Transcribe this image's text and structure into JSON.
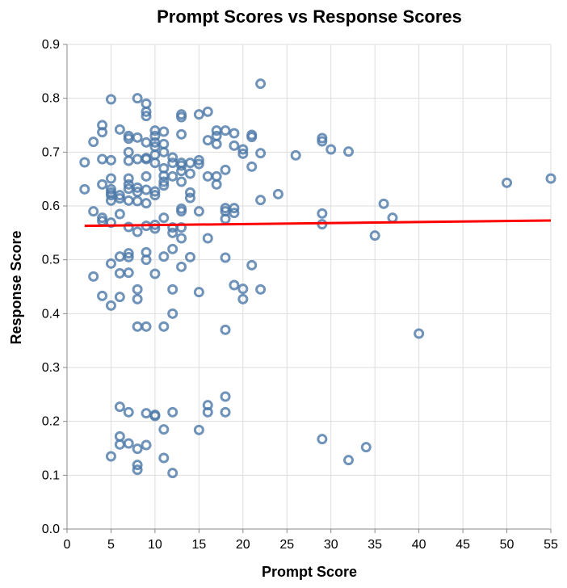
{
  "chart_data": {
    "type": "scatter",
    "title": "Prompt Scores vs Response Scores",
    "xlabel": "Prompt Score",
    "ylabel": "Response Score",
    "xlim": [
      0,
      55
    ],
    "ylim": [
      0,
      0.9
    ],
    "x_ticks": [
      0,
      5,
      10,
      15,
      20,
      25,
      30,
      35,
      40,
      45,
      50,
      55
    ],
    "y_ticks": [
      "0.0",
      "0.1",
      "0.2",
      "0.3",
      "0.4",
      "0.5",
      "0.6",
      "0.7",
      "0.8",
      "0.9"
    ],
    "grid": true,
    "point_color": "#4c78a8",
    "trend_color": "#ff0000",
    "trend_line": {
      "x": [
        2,
        55
      ],
      "y": [
        0.563,
        0.573
      ]
    },
    "points": [
      [
        2,
        0.681
      ],
      [
        2,
        0.631
      ],
      [
        3,
        0.719
      ],
      [
        3,
        0.59
      ],
      [
        3,
        0.469
      ],
      [
        4,
        0.75
      ],
      [
        4,
        0.737
      ],
      [
        4,
        0.687
      ],
      [
        4,
        0.64
      ],
      [
        4,
        0.578
      ],
      [
        4,
        0.572
      ],
      [
        4,
        0.433
      ],
      [
        5,
        0.798
      ],
      [
        5,
        0.685
      ],
      [
        5,
        0.651
      ],
      [
        5,
        0.631
      ],
      [
        5,
        0.625
      ],
      [
        5,
        0.62
      ],
      [
        5,
        0.61
      ],
      [
        5,
        0.569
      ],
      [
        5,
        0.493
      ],
      [
        5,
        0.415
      ],
      [
        5,
        0.135
      ],
      [
        6,
        0.742
      ],
      [
        6,
        0.62
      ],
      [
        6,
        0.614
      ],
      [
        6,
        0.585
      ],
      [
        6,
        0.506
      ],
      [
        6,
        0.475
      ],
      [
        6,
        0.431
      ],
      [
        6,
        0.227
      ],
      [
        6,
        0.172
      ],
      [
        6,
        0.157
      ],
      [
        7,
        0.73
      ],
      [
        7,
        0.725
      ],
      [
        7,
        0.7
      ],
      [
        7,
        0.684
      ],
      [
        7,
        0.651
      ],
      [
        7,
        0.64
      ],
      [
        7,
        0.632
      ],
      [
        7,
        0.61
      ],
      [
        7,
        0.561
      ],
      [
        7,
        0.512
      ],
      [
        7,
        0.505
      ],
      [
        7,
        0.476
      ],
      [
        7,
        0.217
      ],
      [
        7,
        0.159
      ],
      [
        8,
        0.8
      ],
      [
        8,
        0.727
      ],
      [
        8,
        0.687
      ],
      [
        8,
        0.634
      ],
      [
        8,
        0.626
      ],
      [
        8,
        0.609
      ],
      [
        8,
        0.552
      ],
      [
        8,
        0.445
      ],
      [
        8,
        0.427
      ],
      [
        8,
        0.376
      ],
      [
        8,
        0.149
      ],
      [
        8,
        0.119
      ],
      [
        8,
        0.11
      ],
      [
        9,
        0.79
      ],
      [
        9,
        0.775
      ],
      [
        9,
        0.767
      ],
      [
        9,
        0.718
      ],
      [
        9,
        0.689
      ],
      [
        9,
        0.687
      ],
      [
        9,
        0.655
      ],
      [
        9,
        0.63
      ],
      [
        9,
        0.605
      ],
      [
        9,
        0.563
      ],
      [
        9,
        0.514
      ],
      [
        9,
        0.5
      ],
      [
        9,
        0.376
      ],
      [
        9,
        0.215
      ],
      [
        9,
        0.156
      ],
      [
        10,
        0.74
      ],
      [
        10,
        0.73
      ],
      [
        10,
        0.718
      ],
      [
        10,
        0.71
      ],
      [
        10,
        0.695
      ],
      [
        10,
        0.68
      ],
      [
        10,
        0.627
      ],
      [
        10,
        0.62
      ],
      [
        10,
        0.565
      ],
      [
        10,
        0.558
      ],
      [
        10,
        0.474
      ],
      [
        10,
        0.212
      ],
      [
        10,
        0.21
      ],
      [
        11,
        0.738
      ],
      [
        11,
        0.715
      ],
      [
        11,
        0.7
      ],
      [
        11,
        0.67
      ],
      [
        11,
        0.656
      ],
      [
        11,
        0.645
      ],
      [
        11,
        0.638
      ],
      [
        11,
        0.578
      ],
      [
        11,
        0.506
      ],
      [
        11,
        0.376
      ],
      [
        11,
        0.185
      ],
      [
        11,
        0.132
      ],
      [
        12,
        0.69
      ],
      [
        12,
        0.68
      ],
      [
        12,
        0.655
      ],
      [
        12,
        0.56
      ],
      [
        12,
        0.55
      ],
      [
        12,
        0.52
      ],
      [
        12,
        0.445
      ],
      [
        12,
        0.4
      ],
      [
        12,
        0.217
      ],
      [
        12,
        0.104
      ],
      [
        13,
        0.77
      ],
      [
        13,
        0.765
      ],
      [
        13,
        0.733
      ],
      [
        13,
        0.68
      ],
      [
        13,
        0.675
      ],
      [
        13,
        0.665
      ],
      [
        13,
        0.645
      ],
      [
        13,
        0.595
      ],
      [
        13,
        0.59
      ],
      [
        13,
        0.56
      ],
      [
        13,
        0.54
      ],
      [
        13,
        0.487
      ],
      [
        14,
        0.68
      ],
      [
        14,
        0.66
      ],
      [
        14,
        0.625
      ],
      [
        14,
        0.615
      ],
      [
        14,
        0.505
      ],
      [
        15,
        0.77
      ],
      [
        15,
        0.685
      ],
      [
        15,
        0.678
      ],
      [
        15,
        0.59
      ],
      [
        15,
        0.44
      ],
      [
        15,
        0.184
      ],
      [
        16,
        0.775
      ],
      [
        16,
        0.722
      ],
      [
        16,
        0.655
      ],
      [
        16,
        0.54
      ],
      [
        16,
        0.23
      ],
      [
        16,
        0.217
      ],
      [
        17,
        0.74
      ],
      [
        17,
        0.73
      ],
      [
        17,
        0.715
      ],
      [
        17,
        0.655
      ],
      [
        17,
        0.64
      ],
      [
        18,
        0.74
      ],
      [
        18,
        0.667
      ],
      [
        18,
        0.596
      ],
      [
        18,
        0.59
      ],
      [
        18,
        0.576
      ],
      [
        18,
        0.504
      ],
      [
        18,
        0.37
      ],
      [
        18,
        0.246
      ],
      [
        18,
        0.217
      ],
      [
        19,
        0.735
      ],
      [
        19,
        0.712
      ],
      [
        19,
        0.596
      ],
      [
        19,
        0.587
      ],
      [
        19,
        0.453
      ],
      [
        20,
        0.705
      ],
      [
        20,
        0.697
      ],
      [
        20,
        0.446
      ],
      [
        20,
        0.427
      ],
      [
        21,
        0.732
      ],
      [
        21,
        0.728
      ],
      [
        21,
        0.673
      ],
      [
        21,
        0.49
      ],
      [
        22,
        0.827
      ],
      [
        22,
        0.698
      ],
      [
        22,
        0.611
      ],
      [
        22,
        0.445
      ],
      [
        24,
        0.622
      ],
      [
        26,
        0.694
      ],
      [
        29,
        0.726
      ],
      [
        29,
        0.72
      ],
      [
        29,
        0.586
      ],
      [
        29,
        0.566
      ],
      [
        29,
        0.167
      ],
      [
        30,
        0.705
      ],
      [
        32,
        0.701
      ],
      [
        32,
        0.128
      ],
      [
        34,
        0.152
      ],
      [
        35,
        0.545
      ],
      [
        36,
        0.604
      ],
      [
        37,
        0.578
      ],
      [
        40,
        0.363
      ],
      [
        50,
        0.643
      ],
      [
        55,
        0.651
      ]
    ]
  }
}
